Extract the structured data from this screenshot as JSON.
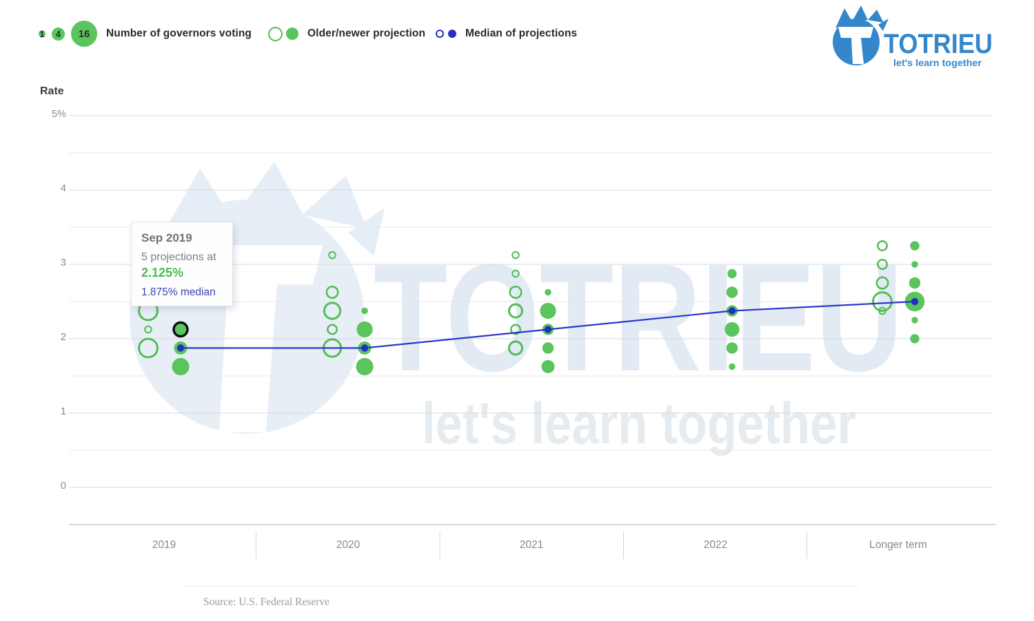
{
  "legend": {
    "sizes": [
      "1",
      "4",
      "16"
    ],
    "governors_label": "Number of governors voting",
    "projection_label": "Older/newer projection",
    "median_label": "Median of projections"
  },
  "axis": {
    "title": "Rate"
  },
  "tooltip": {
    "title": "Sep 2019",
    "projections_line": "5 projections at",
    "value": "2.125%",
    "median_line": "1.875% median"
  },
  "logo": {
    "name": "TOTRIEU",
    "tagline": "let's learn together"
  },
  "watermark": {
    "text": "TOTRIEU",
    "tagline": "let's learn together"
  },
  "source": {
    "text": "Source: U.S. Federal Reserve"
  },
  "colors": {
    "green_fill": "#5ac45d",
    "green_open": "#52bd55",
    "median_line": "#2937c9",
    "median_dot": "#2130c2",
    "highlight_ring": "#0d0d0d",
    "logo_blue": "#3587cb",
    "watermark_blue": "#e2eaf3",
    "grid_major": "#d7dade",
    "grid_minor": "#e6e8ea"
  },
  "chart_data": {
    "type": "scatter",
    "x_categories": [
      "2019",
      "2020",
      "2021",
      "2022",
      "Longer term"
    ],
    "ylabel": "Rate",
    "ylim": [
      0,
      5
    ],
    "y_ticks": [
      "5%",
      "4",
      "3",
      "2",
      "1",
      "0"
    ],
    "y_minor_step": 0.5,
    "legend_bubble_counts": [
      1,
      4,
      16
    ],
    "series": [
      {
        "name": "Older projection",
        "style": "open",
        "points": [
          {
            "x": "2019",
            "rate": 2.375,
            "count": 8
          },
          {
            "x": "2019",
            "rate": 2.125,
            "count": 1
          },
          {
            "x": "2019",
            "rate": 1.875,
            "count": 8
          },
          {
            "x": "2020",
            "rate": 3.125,
            "count": 1
          },
          {
            "x": "2020",
            "rate": 2.625,
            "count": 3
          },
          {
            "x": "2020",
            "rate": 2.375,
            "count": 6
          },
          {
            "x": "2020",
            "rate": 2.125,
            "count": 2
          },
          {
            "x": "2020",
            "rate": 1.875,
            "count": 7
          },
          {
            "x": "2021",
            "rate": 3.125,
            "count": 1
          },
          {
            "x": "2021",
            "rate": 2.875,
            "count": 1
          },
          {
            "x": "2021",
            "rate": 2.625,
            "count": 3
          },
          {
            "x": "2021",
            "rate": 2.375,
            "count": 4
          },
          {
            "x": "2021",
            "rate": 2.125,
            "count": 2
          },
          {
            "x": "2021",
            "rate": 1.875,
            "count": 4
          },
          {
            "x": "Longer term",
            "rate": 3.25,
            "count": 2
          },
          {
            "x": "Longer term",
            "rate": 3.0,
            "count": 2
          },
          {
            "x": "Longer term",
            "rate": 2.75,
            "count": 3
          },
          {
            "x": "Longer term",
            "rate": 2.5,
            "count": 8
          },
          {
            "x": "Longer term",
            "rate": 2.375,
            "count": 1
          }
        ]
      },
      {
        "name": "Newer projection",
        "style": "filled",
        "points": [
          {
            "x": "2019",
            "rate": 2.125,
            "count": 5
          },
          {
            "x": "2019",
            "rate": 1.875,
            "count": 4
          },
          {
            "x": "2019",
            "rate": 1.625,
            "count": 7
          },
          {
            "x": "2020",
            "rate": 2.375,
            "count": 1
          },
          {
            "x": "2020",
            "rate": 2.125,
            "count": 6
          },
          {
            "x": "2020",
            "rate": 1.875,
            "count": 4
          },
          {
            "x": "2020",
            "rate": 1.625,
            "count": 7
          },
          {
            "x": "2021",
            "rate": 2.625,
            "count": 1
          },
          {
            "x": "2021",
            "rate": 2.375,
            "count": 6
          },
          {
            "x": "2021",
            "rate": 2.125,
            "count": 3
          },
          {
            "x": "2021",
            "rate": 1.875,
            "count": 3
          },
          {
            "x": "2021",
            "rate": 1.625,
            "count": 4
          },
          {
            "x": "2022",
            "rate": 2.875,
            "count": 2
          },
          {
            "x": "2022",
            "rate": 2.625,
            "count": 3
          },
          {
            "x": "2022",
            "rate": 2.375,
            "count": 3
          },
          {
            "x": "2022",
            "rate": 2.125,
            "count": 5
          },
          {
            "x": "2022",
            "rate": 1.875,
            "count": 3
          },
          {
            "x": "2022",
            "rate": 1.625,
            "count": 1
          },
          {
            "x": "Longer term",
            "rate": 3.25,
            "count": 2
          },
          {
            "x": "Longer term",
            "rate": 3.0,
            "count": 1
          },
          {
            "x": "Longer term",
            "rate": 2.75,
            "count": 3
          },
          {
            "x": "Longer term",
            "rate": 2.5,
            "count": 9
          },
          {
            "x": "Longer term",
            "rate": 2.25,
            "count": 1
          },
          {
            "x": "Longer term",
            "rate": 2.0,
            "count": 2
          }
        ]
      }
    ],
    "median_series": {
      "name": "Median of projections",
      "points": [
        {
          "x": "2019",
          "rate": 1.875
        },
        {
          "x": "2020",
          "rate": 1.875
        },
        {
          "x": "2021",
          "rate": 2.125
        },
        {
          "x": "2022",
          "rate": 2.375
        },
        {
          "x": "Longer term",
          "rate": 2.5
        }
      ]
    },
    "highlight": {
      "series": "Newer projection",
      "x": "2019",
      "rate": 2.125,
      "count": 5
    }
  }
}
